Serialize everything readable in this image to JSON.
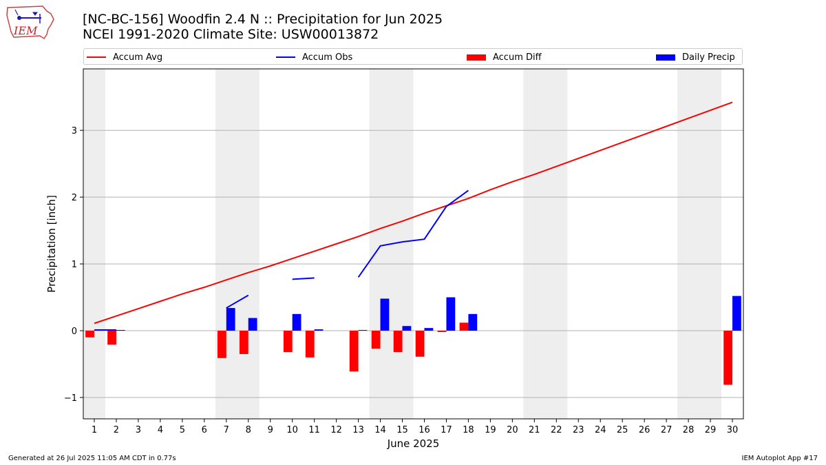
{
  "header": {
    "title_line1": "[NC-BC-156] Woodfin 2.4 N :: Precipitation for Jun 2025",
    "title_line2": "NCEI 1991-2020 Climate Site: USW00013872"
  },
  "logo": {
    "text": "IEM",
    "icon": "iem-iowa-logo"
  },
  "legend": [
    {
      "label": "Accum Avg",
      "kind": "line",
      "color": "#ff0000"
    },
    {
      "label": "Accum Obs",
      "kind": "line",
      "color": "#0000ff"
    },
    {
      "label": "Accum Diff",
      "kind": "patch",
      "color": "#ff0000"
    },
    {
      "label": "Daily Precip",
      "kind": "patch",
      "color": "#0000ff"
    }
  ],
  "footer": {
    "left": "Generated at 26 Jul 2025 11:05 AM CDT in 0.77s",
    "right": "IEM Autoplot App #17"
  },
  "chart_data": {
    "type": "bar",
    "xlabel": "June 2025",
    "ylabel": "Precipitation [inch]",
    "xlim": [
      0.5,
      30.5
    ],
    "ylim": [
      -1.32,
      3.92
    ],
    "yticks": [
      -1,
      0,
      1,
      2,
      3
    ],
    "ytick_labels": [
      "−1",
      "0",
      "1",
      "2",
      "3"
    ],
    "x": [
      1,
      2,
      3,
      4,
      5,
      6,
      7,
      8,
      9,
      10,
      11,
      12,
      13,
      14,
      15,
      16,
      17,
      18,
      19,
      20,
      21,
      22,
      23,
      24,
      25,
      26,
      27,
      28,
      29,
      30
    ],
    "xtick_labels": [
      "1",
      "2",
      "3",
      "4",
      "5",
      "6",
      "7",
      "8",
      "9",
      "10",
      "11",
      "12",
      "13",
      "14",
      "15",
      "16",
      "17",
      "18",
      "19",
      "20",
      "21",
      "22",
      "23",
      "24",
      "25",
      "26",
      "27",
      "28",
      "29",
      "30"
    ],
    "weekend_shading": [
      [
        0.5,
        1.5
      ],
      [
        6.5,
        8.5
      ],
      [
        13.5,
        15.5
      ],
      [
        20.5,
        22.5
      ],
      [
        27.5,
        29.5
      ]
    ],
    "grid": "horizontal",
    "legend_placement": "top",
    "series": [
      {
        "name": "Accum Avg",
        "type": "line",
        "color": "#ff0000",
        "x": [
          1,
          2,
          3,
          4,
          5,
          6,
          7,
          8,
          9,
          10,
          11,
          12,
          13,
          14,
          15,
          16,
          17,
          18,
          19,
          20,
          21,
          22,
          23,
          24,
          25,
          26,
          27,
          28,
          29,
          30
        ],
        "values": [
          0.11,
          0.22,
          0.33,
          0.44,
          0.55,
          0.65,
          0.76,
          0.87,
          0.97,
          1.08,
          1.19,
          1.3,
          1.41,
          1.53,
          1.64,
          1.76,
          1.87,
          1.98,
          2.11,
          2.23,
          2.34,
          2.46,
          2.58,
          2.7,
          2.82,
          2.94,
          3.06,
          3.18,
          3.3,
          3.42
        ]
      },
      {
        "name": "Accum Obs",
        "type": "line",
        "color": "#0000ff",
        "segments": [
          {
            "x": [
              1,
              2
            ],
            "values": [
              0.01,
              0.01
            ]
          },
          {
            "x": [
              7,
              8
            ],
            "values": [
              0.34,
              0.53
            ]
          },
          {
            "x": [
              10,
              11
            ],
            "values": [
              0.77,
              0.79
            ]
          },
          {
            "x": [
              13,
              14,
              15,
              16,
              17,
              18
            ],
            "values": [
              0.8,
              1.27,
              1.33,
              1.37,
              1.86,
              2.1
            ]
          }
        ]
      },
      {
        "name": "Accum Diff",
        "type": "bar",
        "color": "#ff0000",
        "x": [
          1,
          2,
          7,
          8,
          10,
          11,
          13,
          14,
          15,
          16,
          17,
          18,
          30
        ],
        "values": [
          -0.1,
          -0.21,
          -0.41,
          -0.35,
          -0.32,
          -0.4,
          -0.61,
          -0.27,
          -0.32,
          -0.39,
          -0.02,
          0.12,
          -0.81
        ]
      },
      {
        "name": "Daily Precip",
        "type": "bar",
        "color": "#0000ff",
        "x": [
          1,
          2,
          7,
          8,
          10,
          11,
          13,
          14,
          15,
          16,
          17,
          18,
          30
        ],
        "values": [
          0.01,
          0.01,
          0.34,
          0.19,
          0.25,
          0.02,
          0.01,
          0.48,
          0.07,
          0.04,
          0.5,
          0.25,
          0.52
        ]
      }
    ]
  }
}
